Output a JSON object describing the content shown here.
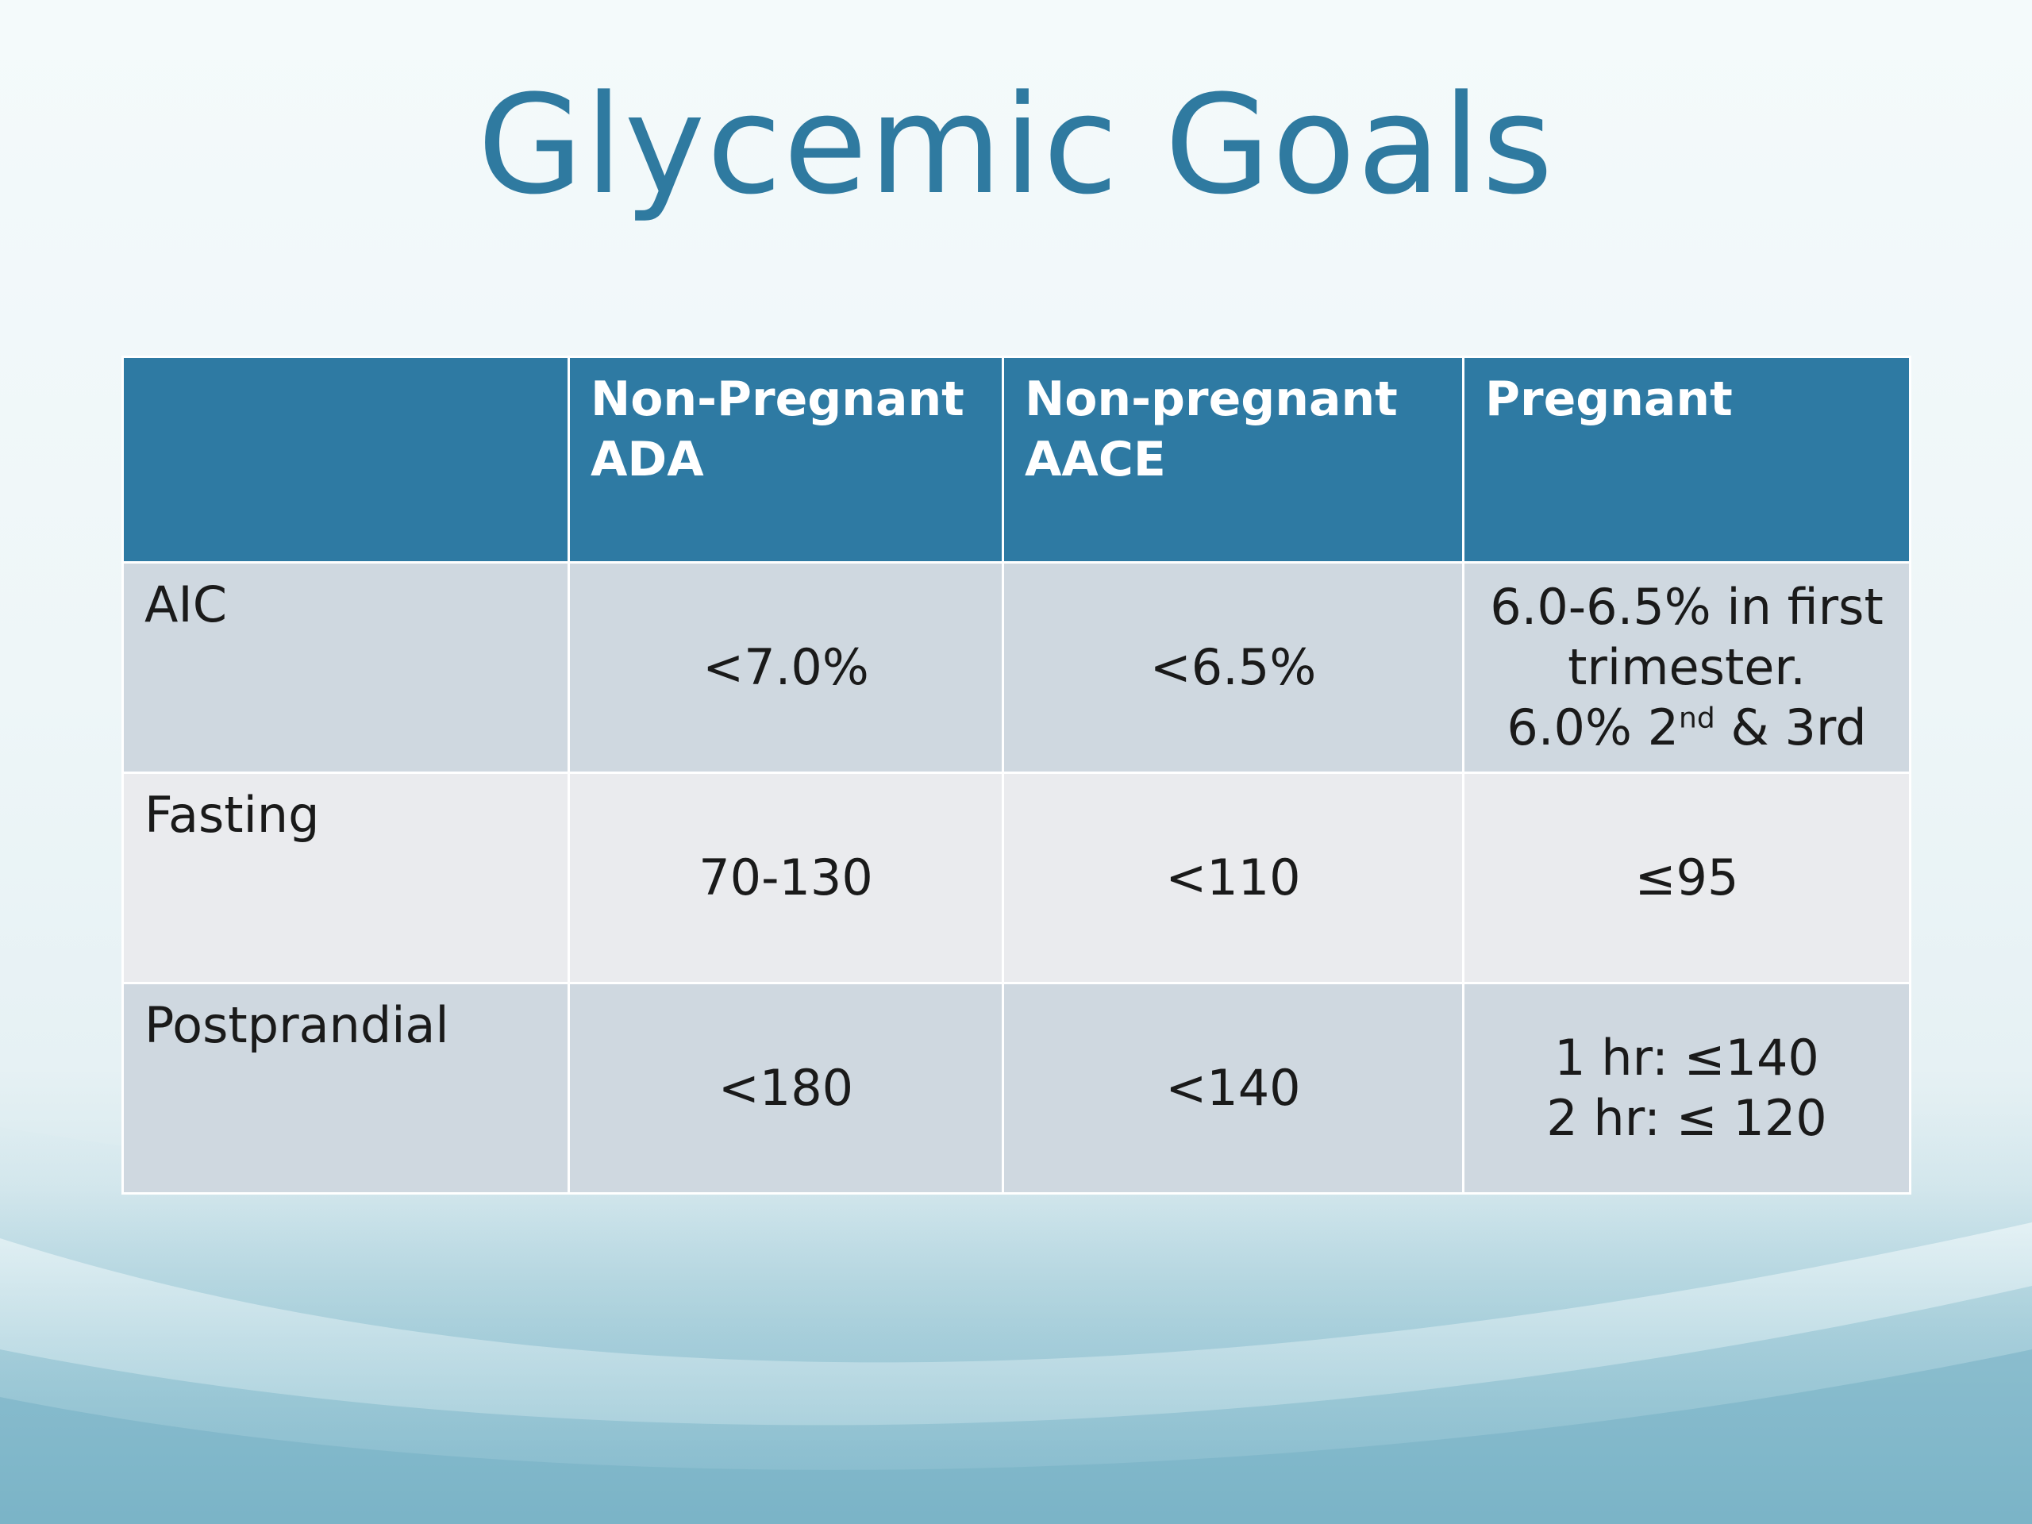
{
  "slide": {
    "title": "Glycemic Goals"
  },
  "table": {
    "headers": [
      {
        "lines": [
          ""
        ]
      },
      {
        "lines": [
          "Non-Pregnant",
          "ADA"
        ]
      },
      {
        "lines": [
          "Non-pregnant",
          "AACE"
        ]
      },
      {
        "lines": [
          "Pregnant"
        ]
      }
    ],
    "rows": [
      {
        "label": "AIC",
        "ada": "<7.0%",
        "aace": "<6.5%",
        "pregnant": {
          "line1": "6.0-6.5% in first",
          "line2": "trimester.",
          "line3_prefix": "6.0% 2",
          "line3_sup": "nd",
          "line3_suffix": " & 3rd"
        }
      },
      {
        "label": "Fasting",
        "ada": "70-130",
        "aace": "<110",
        "pregnant": {
          "line1": "≤95"
        }
      },
      {
        "label": "Postprandial",
        "ada": "<180",
        "aace": "<140",
        "pregnant": {
          "line1": "1 hr: ≤140",
          "line2": "2 hr: ≤ 120"
        }
      }
    ]
  },
  "colors": {
    "title": "#2f7aa0",
    "header_bg": "#2e7aa3",
    "row_odd": "#cfd8e0",
    "row_even": "#eaebee"
  }
}
